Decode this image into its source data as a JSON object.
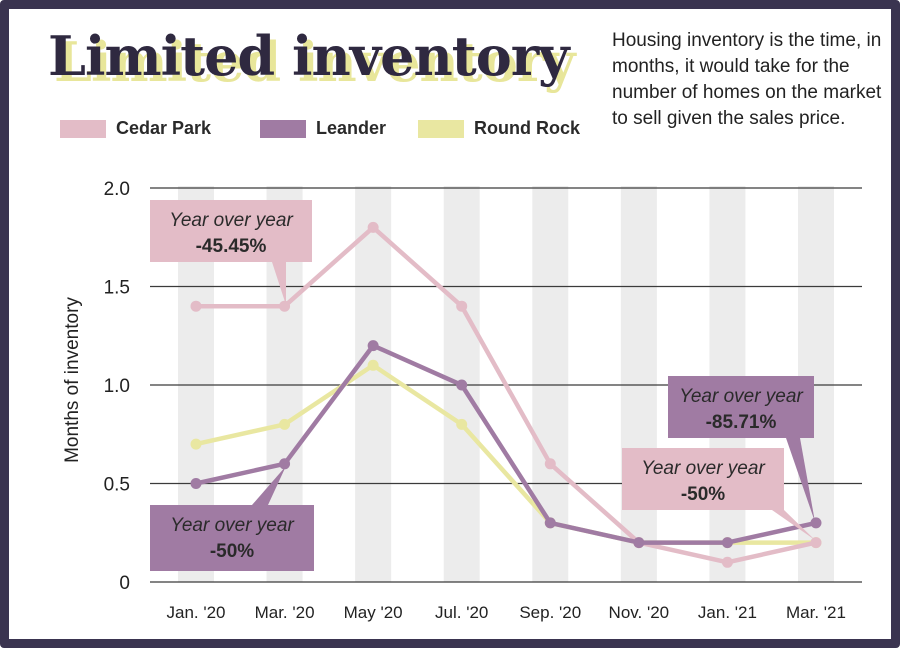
{
  "header": {
    "title": "Limited inventory",
    "description": "Housing inventory is the time, in months, it would take for the number of homes on the market to sell given the sales price."
  },
  "colors": {
    "Cedar Park": "#e3bcc7",
    "Leander": "#a07ba3",
    "Round Rock": "#e9e7a1",
    "frame": "#3a3450"
  },
  "chart_data": {
    "type": "line",
    "ylabel": "Months of inventory",
    "xlabel": "",
    "ylim": [
      0,
      2.0
    ],
    "yticks": [
      "2.0",
      "1.5",
      "1.0",
      "0.5",
      "0"
    ],
    "categories": [
      "Jan. '20",
      "Mar. '20",
      "May '20",
      "Jul. '20",
      "Sep. '20",
      "Nov. '20",
      "Jan. '21",
      "Mar. '21"
    ],
    "legend_position": "top-left",
    "grid": true,
    "series": [
      {
        "name": "Cedar Park",
        "values": [
          1.4,
          1.4,
          1.8,
          1.4,
          0.6,
          0.2,
          0.1,
          0.2
        ]
      },
      {
        "name": "Leander",
        "values": [
          0.5,
          0.6,
          1.2,
          1.0,
          0.3,
          0.2,
          0.2,
          0.3
        ]
      },
      {
        "name": "Round Rock",
        "values": [
          0.7,
          0.8,
          1.1,
          0.8,
          0.3,
          0.2,
          0.2,
          0.2
        ]
      }
    ],
    "annotations": [
      {
        "series": "Cedar Park",
        "line1": "Year over year",
        "line2": "-45.45%"
      },
      {
        "series": "Leander",
        "line1": "Year over year",
        "line2": "-50%"
      },
      {
        "series": "Leander",
        "line1": "Year over year",
        "line2": "-85.71%"
      },
      {
        "series": "Cedar Park",
        "line1": "Year over year",
        "line2": "-50%"
      }
    ]
  }
}
